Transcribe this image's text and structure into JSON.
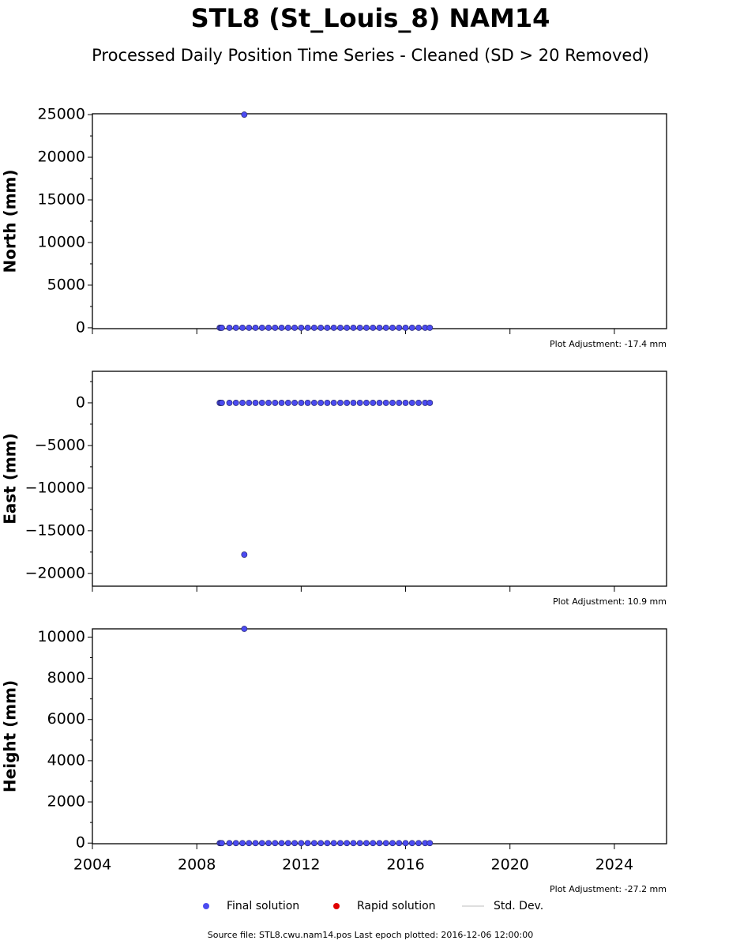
{
  "title": "STL8 (St_Louis_8) NAM14",
  "subtitle": "Processed Daily Position Time Series - Cleaned (SD > 20 Removed)",
  "legend": [
    {
      "name": "Final solution",
      "color": "#4b4bf0",
      "marker": "dot"
    },
    {
      "name": "Rapid solution",
      "color": "#e00000",
      "marker": "dot"
    },
    {
      "name": "Std. Dev.",
      "color": "#d3d3d3",
      "marker": "line"
    }
  ],
  "footer": "Source file: STL8.cwu.nam14.pos  Last epoch plotted: 2016-12-06 12:00:00",
  "chart_data": [
    {
      "type": "scatter",
      "ylabel": "North (mm)",
      "annotation": "Plot Adjustment: -17.4 mm",
      "color": "#4b4bf0",
      "x": [
        2008.88,
        2008.92,
        2008.96,
        2009.25,
        2009.5,
        2009.75,
        2009.82,
        2010.0,
        2010.25,
        2010.5,
        2010.75,
        2011.0,
        2011.25,
        2011.5,
        2011.75,
        2012.0,
        2012.25,
        2012.5,
        2012.75,
        2013.0,
        2013.25,
        2013.5,
        2013.75,
        2014.0,
        2014.25,
        2014.5,
        2014.75,
        2015.0,
        2015.25,
        2015.5,
        2015.75,
        2016.0,
        2016.25,
        2016.5,
        2016.75,
        2016.93
      ],
      "values": [
        0,
        0,
        0,
        0,
        0,
        0,
        25000,
        0,
        0,
        0,
        0,
        0,
        0,
        0,
        0,
        0,
        0,
        0,
        0,
        0,
        0,
        0,
        0,
        0,
        0,
        0,
        0,
        0,
        0,
        0,
        0,
        0,
        0,
        0,
        0,
        0
      ],
      "xlim": [
        2004,
        2026
      ],
      "xticks": [
        2004,
        2008,
        2012,
        2016,
        2020,
        2024
      ],
      "ylim": [
        -100,
        25100
      ],
      "yticks": [
        0,
        5000,
        10000,
        15000,
        20000,
        25000
      ],
      "yminorticks": [
        2500,
        7500,
        12500,
        17500,
        22500
      ]
    },
    {
      "type": "scatter",
      "ylabel": "East (mm)",
      "annotation": "Plot Adjustment: 10.9 mm",
      "color": "#4b4bf0",
      "x": [
        2008.88,
        2008.92,
        2008.96,
        2009.25,
        2009.5,
        2009.75,
        2009.82,
        2010.0,
        2010.25,
        2010.5,
        2010.75,
        2011.0,
        2011.25,
        2011.5,
        2011.75,
        2012.0,
        2012.25,
        2012.5,
        2012.75,
        2013.0,
        2013.25,
        2013.5,
        2013.75,
        2014.0,
        2014.25,
        2014.5,
        2014.75,
        2015.0,
        2015.25,
        2015.5,
        2015.75,
        2016.0,
        2016.25,
        2016.5,
        2016.75,
        2016.93
      ],
      "values": [
        0,
        0,
        0,
        0,
        0,
        0,
        -17800,
        0,
        0,
        0,
        0,
        0,
        0,
        0,
        0,
        0,
        0,
        0,
        0,
        0,
        0,
        0,
        0,
        0,
        0,
        0,
        0,
        0,
        0,
        0,
        0,
        0,
        0,
        0,
        0,
        0
      ],
      "xlim": [
        2004,
        2026
      ],
      "xticks": [
        2004,
        2008,
        2012,
        2016,
        2020,
        2024
      ],
      "ylim": [
        -21500,
        3700
      ],
      "yticks": [
        {
          "value": -20000,
          "label": "−20000"
        },
        {
          "value": -15000,
          "label": "−15000"
        },
        {
          "value": -10000,
          "label": "−10000"
        },
        {
          "value": -5000,
          "label": "−5000"
        },
        0
      ],
      "yminorticks": [
        -17500,
        -12500,
        -7500,
        -2500,
        2500
      ]
    },
    {
      "type": "scatter",
      "ylabel": "Height (mm)",
      "annotation": "Plot Adjustment: -27.2 mm",
      "color": "#4b4bf0",
      "x": [
        2008.88,
        2008.92,
        2008.96,
        2009.25,
        2009.5,
        2009.75,
        2009.82,
        2010.0,
        2010.25,
        2010.5,
        2010.75,
        2011.0,
        2011.25,
        2011.5,
        2011.75,
        2012.0,
        2012.25,
        2012.5,
        2012.75,
        2013.0,
        2013.25,
        2013.5,
        2013.75,
        2014.0,
        2014.25,
        2014.5,
        2014.75,
        2015.0,
        2015.25,
        2015.5,
        2015.75,
        2016.0,
        2016.25,
        2016.5,
        2016.75,
        2016.93
      ],
      "values": [
        0,
        0,
        0,
        0,
        0,
        0,
        10400,
        0,
        0,
        0,
        0,
        0,
        0,
        0,
        0,
        0,
        0,
        0,
        0,
        0,
        0,
        0,
        0,
        0,
        0,
        0,
        0,
        0,
        0,
        0,
        0,
        0,
        0,
        0,
        0,
        0
      ],
      "xlim": [
        2004,
        2026
      ],
      "xticks": [
        2004,
        2008,
        2012,
        2016,
        2020,
        2024
      ],
      "ylim": [
        -30,
        10400
      ],
      "yticks": [
        0,
        2000,
        4000,
        6000,
        8000,
        10000
      ],
      "yminorticks": [
        1000,
        3000,
        5000,
        7000,
        9000
      ]
    }
  ]
}
